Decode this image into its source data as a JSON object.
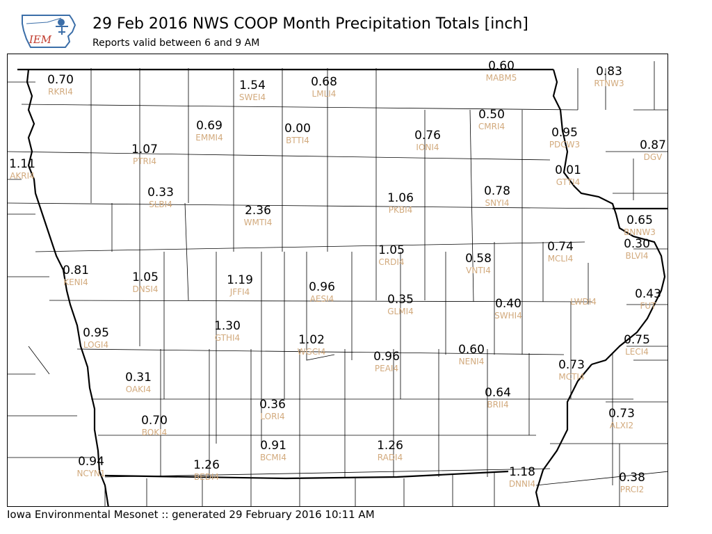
{
  "header": {
    "title": "29 Feb 2016 NWS COOP Month Precipitation Totals [inch]",
    "subtitle": "Reports valid between 6 and 9 AM",
    "logo_text": "IEM"
  },
  "footer": {
    "text": "Iowa Environmental Mesonet :: generated 29 February 2016 10:11 AM"
  },
  "colors": {
    "value_text": "#000000",
    "station_id_text": "#d2aa7d",
    "county_lines": "#000000",
    "state_border": "#000000",
    "logo_blue": "#3b6ea8",
    "logo_red": "#c0392b"
  },
  "stations": [
    {
      "id": "RKRI4",
      "value": "0.70"
    },
    {
      "id": "SWEI4",
      "value": "1.54"
    },
    {
      "id": "LMLI4",
      "value": "0.68"
    },
    {
      "id": "MABM5",
      "value": "0.60"
    },
    {
      "id": "RTNW3",
      "value": "0.83"
    },
    {
      "id": "EMMI4",
      "value": "0.69"
    },
    {
      "id": "BTTI4",
      "value": "0.00"
    },
    {
      "id": "CMRI4",
      "value": "0.50"
    },
    {
      "id": "IONI4",
      "value": "0.76"
    },
    {
      "id": "PDCW3",
      "value": "0.95"
    },
    {
      "id": "DGV",
      "value": "0.87"
    },
    {
      "id": "PTRI4",
      "value": "1.07"
    },
    {
      "id": "AKRI4",
      "value": "1.11"
    },
    {
      "id": "GTTI4",
      "value": "0.01"
    },
    {
      "id": "SLBI4",
      "value": "0.33"
    },
    {
      "id": "PKBI4",
      "value": "1.06"
    },
    {
      "id": "SNYI4",
      "value": "0.78"
    },
    {
      "id": "BNNW3",
      "value": "0.65"
    },
    {
      "id": "WMTI4",
      "value": "2.36"
    },
    {
      "id": "CRDI4",
      "value": "1.05"
    },
    {
      "id": "VNTI4",
      "value": "0.58"
    },
    {
      "id": "MCLI4",
      "value": "0.74"
    },
    {
      "id": "BLVI4",
      "value": "0.30"
    },
    {
      "id": "KENI4",
      "value": "0.81"
    },
    {
      "id": "DNSI4",
      "value": "1.05"
    },
    {
      "id": "JFFI4",
      "value": "1.19"
    },
    {
      "id": "AESI4",
      "value": "0.96"
    },
    {
      "id": "GLMI4",
      "value": "0.35"
    },
    {
      "id": "SWHI4",
      "value": "0.40"
    },
    {
      "id": "LWDI4",
      "value": ""
    },
    {
      "id": "FUT",
      "value": "0.43"
    },
    {
      "id": "LOGI4",
      "value": "0.95"
    },
    {
      "id": "GTHI4",
      "value": "1.30"
    },
    {
      "id": "WGCI4",
      "value": "1.02"
    },
    {
      "id": "PEAI4",
      "value": "0.96"
    },
    {
      "id": "NENI4",
      "value": "0.60"
    },
    {
      "id": "LECI4",
      "value": "0.75"
    },
    {
      "id": "MCTI4",
      "value": "0.73"
    },
    {
      "id": "OAKI4",
      "value": "0.31"
    },
    {
      "id": "LORI4",
      "value": "0.36"
    },
    {
      "id": "BRII4",
      "value": "0.64"
    },
    {
      "id": "ALXI2",
      "value": "0.73"
    },
    {
      "id": "BOKI4",
      "value": "0.70"
    },
    {
      "id": "BCMI4",
      "value": "0.91"
    },
    {
      "id": "RADI4",
      "value": "1.26"
    },
    {
      "id": "NCYN1",
      "value": "0.94"
    },
    {
      "id": "BEDI4",
      "value": "1.26"
    },
    {
      "id": "DNNI4",
      "value": "1.18"
    },
    {
      "id": "PRCI2",
      "value": "0.38"
    }
  ]
}
